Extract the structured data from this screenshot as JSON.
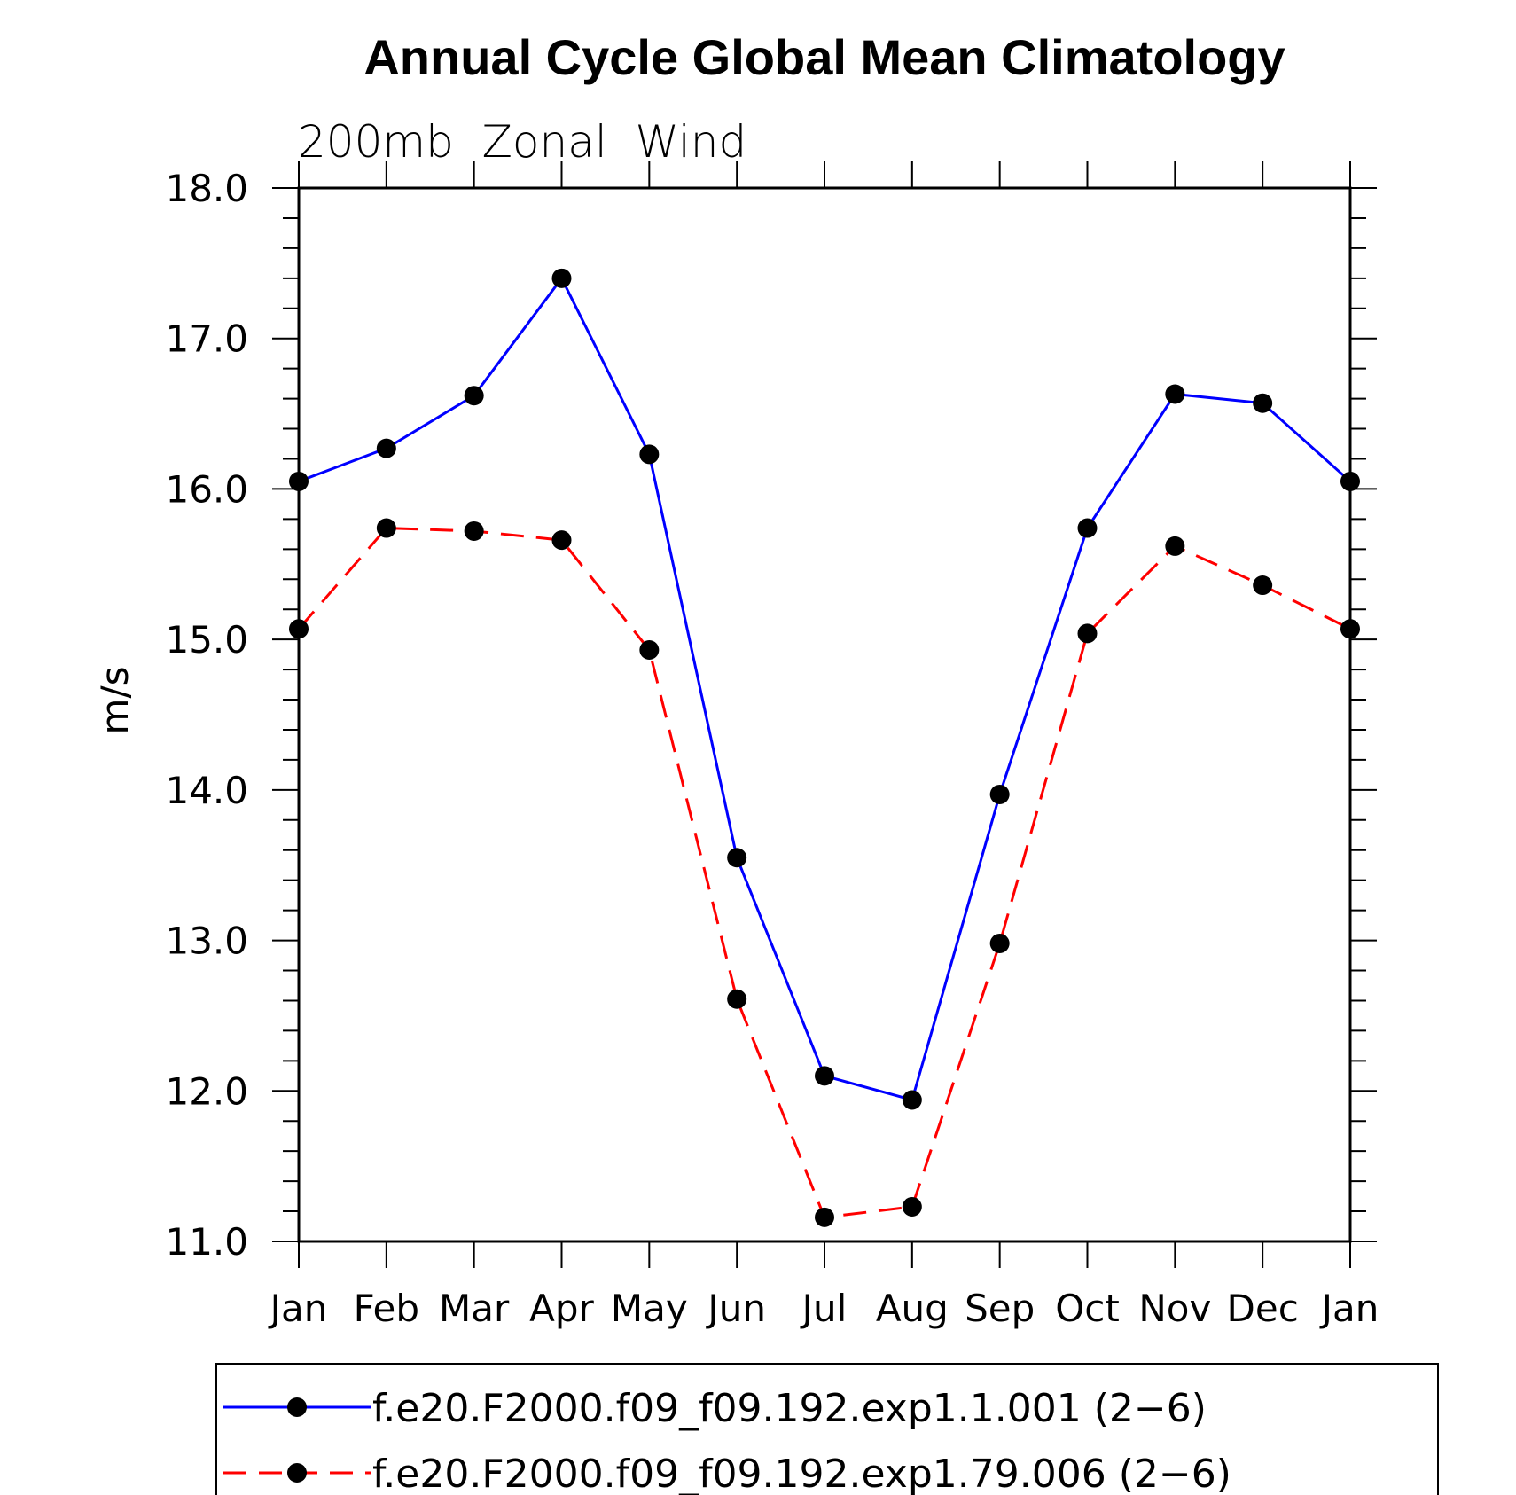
{
  "chart_data": {
    "type": "line",
    "title": "Annual Cycle Global Mean Climatology",
    "subtitle": "200mb  Zonal  Wind",
    "xlabel": "",
    "ylabel": "m/s",
    "categories": [
      "Jan",
      "Feb",
      "Mar",
      "Apr",
      "May",
      "Jun",
      "Jul",
      "Aug",
      "Sep",
      "Oct",
      "Nov",
      "Dec",
      "Jan"
    ],
    "ylim": [
      11.0,
      18.0
    ],
    "yticks": [
      "11.0",
      "12.0",
      "13.0",
      "14.0",
      "15.0",
      "16.0",
      "17.0",
      "18.0"
    ],
    "grid": false,
    "legend_position": "bottom",
    "series": [
      {
        "name": "f.e20.F2000.f09_f09.192.exp1.1.001 (2−6)",
        "color": "#0000ff",
        "style": "solid",
        "values": [
          16.05,
          16.27,
          16.62,
          17.4,
          16.23,
          13.55,
          12.1,
          11.94,
          13.97,
          15.74,
          16.63,
          16.57,
          16.05
        ]
      },
      {
        "name": "f.e20.F2000.f09_f09.192.exp1.79.006 (2−6)",
        "color": "#ff0000",
        "style": "dashed",
        "values": [
          15.07,
          15.74,
          15.72,
          15.66,
          14.93,
          12.61,
          11.16,
          11.23,
          12.98,
          15.04,
          15.62,
          15.36,
          15.07
        ]
      }
    ]
  }
}
